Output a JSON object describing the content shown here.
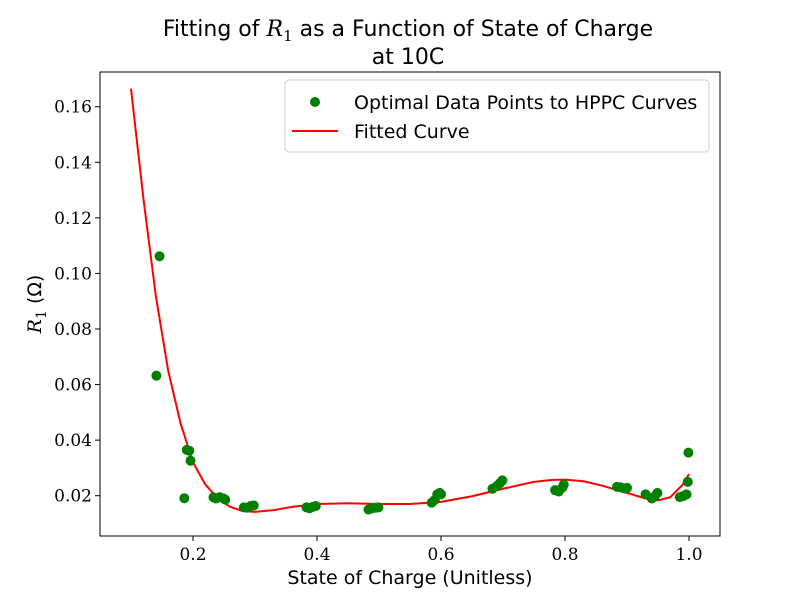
{
  "chart_data": {
    "type": "scatter",
    "title_line1_prefix": "Fitting of ",
    "title_symbol": "R",
    "title_symbol_sub": "1",
    "title_line1_suffix": " as a Function of State of Charge",
    "title_line2": "at 10C",
    "xlabel": "State of Charge (Unitless)",
    "ylabel_symbol": "R",
    "ylabel_sub": "1",
    "ylabel_unit": " (Ω)",
    "xlim": [
      0.05,
      1.05
    ],
    "ylim": [
      0.0055,
      0.1725
    ],
    "xticks": [
      0.2,
      0.4,
      0.6,
      0.8,
      1.0
    ],
    "xtick_labels": [
      "0.2",
      "0.4",
      "0.6",
      "0.8",
      "1.0"
    ],
    "yticks": [
      0.02,
      0.04,
      0.06,
      0.08,
      0.1,
      0.12,
      0.14,
      0.16
    ],
    "ytick_labels": [
      "0.02",
      "0.04",
      "0.06",
      "0.08",
      "0.10",
      "0.12",
      "0.14",
      "0.16"
    ],
    "grid": false,
    "legend_position": "top-right",
    "colors": {
      "points": "#008000",
      "curve": "#ff0000"
    },
    "series": [
      {
        "name": "Optimal Data Points to HPPC Curves",
        "kind": "scatter",
        "x": [
          0.141,
          0.146,
          0.186,
          0.19,
          0.194,
          0.196,
          0.233,
          0.237,
          0.243,
          0.249,
          0.252,
          0.282,
          0.288,
          0.293,
          0.298,
          0.383,
          0.388,
          0.393,
          0.398,
          0.483,
          0.489,
          0.495,
          0.499,
          0.585,
          0.59,
          0.594,
          0.598,
          0.6,
          0.683,
          0.69,
          0.695,
          0.699,
          0.784,
          0.79,
          0.796,
          0.798,
          0.884,
          0.89,
          0.896,
          0.9,
          0.93,
          0.94,
          0.945,
          0.949,
          0.985,
          0.991,
          0.996,
          0.998,
          0.999
        ],
        "y": [
          0.0632,
          0.1062,
          0.0191,
          0.0365,
          0.0362,
          0.0326,
          0.0194,
          0.019,
          0.0195,
          0.019,
          0.0186,
          0.0158,
          0.0157,
          0.0163,
          0.0165,
          0.0158,
          0.0155,
          0.016,
          0.0163,
          0.015,
          0.0155,
          0.0157,
          0.0158,
          0.0175,
          0.0185,
          0.0205,
          0.021,
          0.0205,
          0.0225,
          0.0235,
          0.0245,
          0.0255,
          0.022,
          0.0215,
          0.023,
          0.024,
          0.0232,
          0.023,
          0.0226,
          0.0228,
          0.0205,
          0.019,
          0.0198,
          0.021,
          0.0195,
          0.0199,
          0.0205,
          0.025,
          0.0355
        ]
      },
      {
        "name": "Fitted Curve",
        "kind": "line",
        "x": [
          0.1,
          0.12,
          0.14,
          0.16,
          0.18,
          0.2,
          0.22,
          0.24,
          0.26,
          0.28,
          0.3,
          0.33,
          0.36,
          0.4,
          0.45,
          0.5,
          0.55,
          0.6,
          0.65,
          0.7,
          0.75,
          0.78,
          0.8,
          0.83,
          0.86,
          0.9,
          0.93,
          0.95,
          0.97,
          0.99,
          1.0
        ],
        "y": [
          0.1665,
          0.127,
          0.092,
          0.065,
          0.046,
          0.032,
          0.024,
          0.019,
          0.016,
          0.0145,
          0.0142,
          0.0148,
          0.016,
          0.017,
          0.0173,
          0.017,
          0.017,
          0.0178,
          0.0198,
          0.0225,
          0.025,
          0.0257,
          0.0258,
          0.0252,
          0.0236,
          0.021,
          0.019,
          0.0183,
          0.0195,
          0.024,
          0.0278
        ]
      }
    ]
  }
}
